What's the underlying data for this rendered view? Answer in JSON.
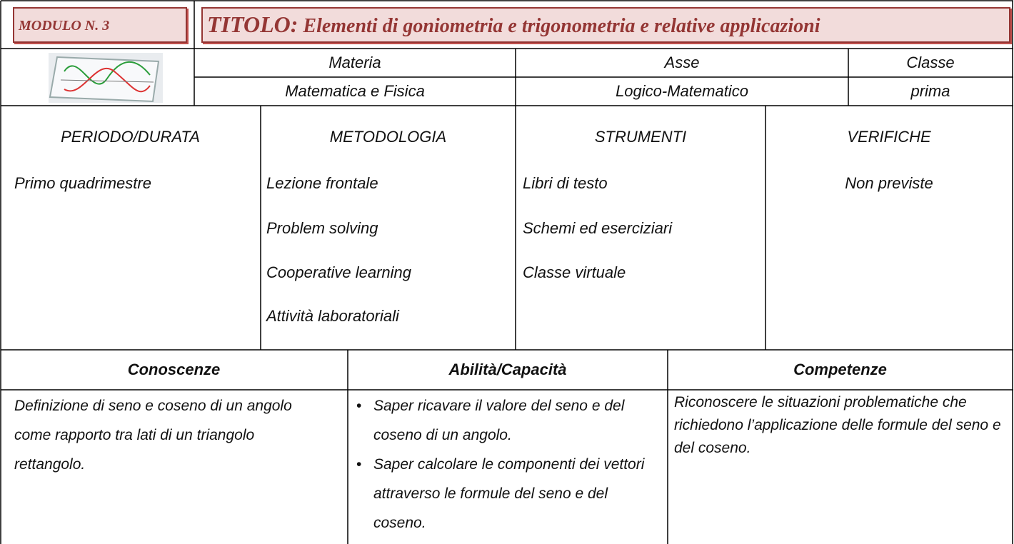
{
  "module": {
    "label": "MODULO N. 3"
  },
  "title": {
    "prefix": "TITOLO:",
    "text": "Elementi di goniometria e trigonometria e relative applicazioni"
  },
  "info": {
    "headers": [
      "Materia",
      "Asse",
      "Classe"
    ],
    "values": [
      "Matematica e Fisica",
      "Logico-Matematico",
      "prima"
    ]
  },
  "planning": [
    {
      "header": "PERIODO/DURATA",
      "items": [
        "Primo quadrimestre"
      ]
    },
    {
      "header": "METODOLOGIA",
      "items": [
        "Lezione frontale",
        "Problem solving",
        "Cooperative learning",
        "Attività laboratoriali"
      ]
    },
    {
      "header": "STRUMENTI",
      "items": [
        "Libri di testo",
        "Schemi ed eserciziari",
        "Classe virtuale"
      ]
    },
    {
      "header": "VERIFICHE",
      "items": [
        "Non previste"
      ]
    }
  ],
  "outcomes": {
    "headers": [
      "Conoscenze",
      "Abilità/Capacità",
      "Competenze"
    ],
    "conoscenze": "Definizione di seno e coseno di un angolo come rapporto tra lati di un triangolo rettangolo.",
    "abilita": [
      "Saper ricavare il valore del seno e del coseno di un angolo.",
      "Saper calcolare le componenti dei vettori attraverso le formule del seno e del coseno."
    ],
    "competenze": "Riconoscere le situazioni problematiche che richiedono l’applicazione delle formule del seno e del coseno."
  }
}
